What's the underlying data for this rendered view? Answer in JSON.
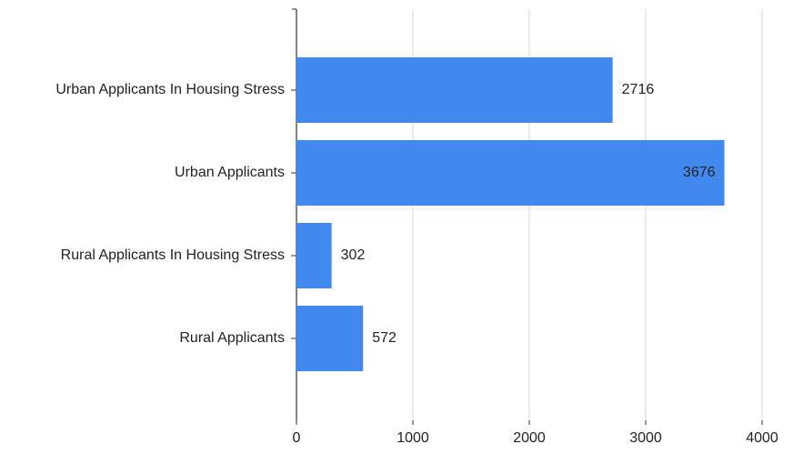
{
  "chart_data": {
    "type": "bar",
    "orientation": "horizontal",
    "categories": [
      "Urban Applicants In Housing Stress",
      "Urban Applicants",
      "Rural Applicants In Housing Stress",
      "Rural Applicants"
    ],
    "values": [
      2716,
      3676,
      302,
      572
    ],
    "color": "#4189ee",
    "xlim": [
      0,
      4000
    ],
    "xticks": [
      0,
      1000,
      2000,
      3000,
      4000
    ],
    "grid": true
  }
}
